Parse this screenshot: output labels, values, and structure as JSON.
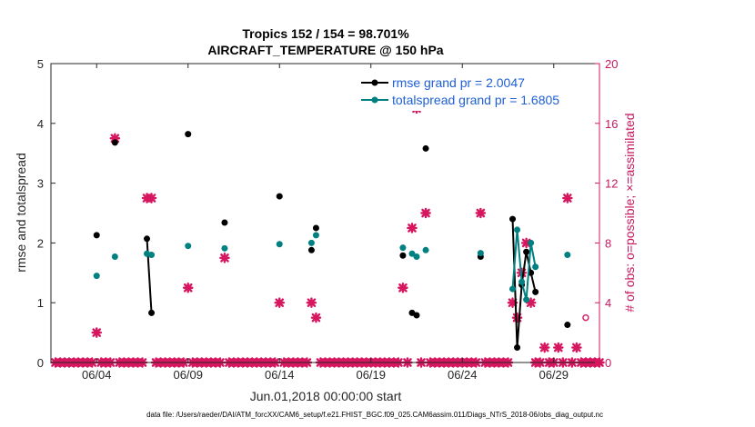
{
  "chart_data": {
    "type": "scatter",
    "title": "Tropics 152 / 154 = 98.701%",
    "subtitle": "AIRCRAFT_TEMPERATURE @ 150 hPa",
    "xlabel": "Jun.01,2018 00:00:00 start",
    "ylabel": "rmse and totalspread",
    "ylabel_right": "# of obs: o=possible; ×=assimilated",
    "xlim": [
      0.5,
      30.5
    ],
    "ylim": [
      0,
      5
    ],
    "ylim_right": [
      0,
      20
    ],
    "x_ticks": [
      3,
      8,
      13,
      18,
      23,
      28
    ],
    "x_tick_labels": [
      "06/04",
      "06/09",
      "06/14",
      "06/19",
      "06/24",
      "06/29"
    ],
    "y_ticks": [
      0,
      1,
      2,
      3,
      4,
      5
    ],
    "y_tick_labels": [
      "0",
      "1",
      "2",
      "3",
      "4",
      "5"
    ],
    "y_right_ticks": [
      0,
      4,
      8,
      12,
      16,
      20
    ],
    "y_right_tick_labels": [
      "0",
      "4",
      "8",
      "12",
      "16",
      "20"
    ],
    "grid": false,
    "legend_position": "top-right",
    "legend": [
      "rmse grand pr = 2.0047",
      "totalspread grand pr = 1.6805"
    ],
    "colors": {
      "rmse": "#000000",
      "totalspread": "#008080",
      "obs": "#d6175f",
      "axis": "#262626",
      "legend_text": "#1f5fd6"
    },
    "rmse_segments": [
      [
        [
          3.0,
          2.13
        ]
      ],
      [
        [
          4.0,
          3.68
        ]
      ],
      [
        [
          5.75,
          2.07
        ],
        [
          6.0,
          0.83
        ]
      ],
      [
        [
          8.0,
          3.82
        ]
      ],
      [
        [
          10.0,
          2.34
        ]
      ],
      [
        [
          13.0,
          2.78
        ]
      ],
      [
        [
          14.75,
          1.88
        ]
      ],
      [
        [
          15.0,
          2.25
        ]
      ],
      [
        [
          19.75,
          1.79
        ]
      ],
      [
        [
          20.25,
          0.83
        ],
        [
          20.5,
          0.79
        ]
      ],
      [
        [
          21.0,
          3.58
        ]
      ],
      [
        [
          24.0,
          1.77
        ]
      ],
      [
        [
          25.75,
          2.4
        ],
        [
          26.0,
          0.25
        ],
        [
          26.25,
          1.3
        ],
        [
          26.5,
          1.85
        ],
        [
          26.75,
          1.5
        ],
        [
          27.0,
          1.18
        ]
      ],
      [
        [
          28.75,
          0.63
        ]
      ]
    ],
    "totalspread_segments": [
      [
        [
          3.0,
          1.45
        ]
      ],
      [
        [
          4.0,
          1.77
        ]
      ],
      [
        [
          5.75,
          1.82
        ],
        [
          6.0,
          1.8
        ]
      ],
      [
        [
          8.0,
          1.95
        ]
      ],
      [
        [
          10.0,
          1.91
        ]
      ],
      [
        [
          13.0,
          1.98
        ]
      ],
      [
        [
          14.75,
          2.0
        ]
      ],
      [
        [
          15.0,
          2.13
        ]
      ],
      [
        [
          19.75,
          1.92
        ]
      ],
      [
        [
          20.25,
          1.82
        ],
        [
          20.5,
          1.77
        ]
      ],
      [
        [
          21.0,
          1.88
        ]
      ],
      [
        [
          24.0,
          1.83
        ]
      ],
      [
        [
          25.75,
          1.23
        ],
        [
          26.0,
          2.22
        ],
        [
          26.25,
          1.35
        ],
        [
          26.5,
          1.05
        ],
        [
          26.75,
          2.0
        ],
        [
          27.0,
          1.6
        ]
      ],
      [
        [
          28.75,
          1.8
        ]
      ]
    ],
    "obs_assimilated_x": [
      0.75,
      1.0,
      1.25,
      1.5,
      1.75,
      2.0,
      2.25,
      2.5,
      2.75,
      3.0,
      3.25,
      3.5,
      3.75,
      4.0,
      4.25,
      4.5,
      4.75,
      5.0,
      5.25,
      5.5,
      5.75,
      6.0,
      6.25,
      6.5,
      6.75,
      7.0,
      7.25,
      7.5,
      7.75,
      8.0,
      8.25,
      8.5,
      8.75,
      9.0,
      9.25,
      9.5,
      9.75,
      10.0,
      10.25,
      10.5,
      10.75,
      11.0,
      11.25,
      11.5,
      11.75,
      12.0,
      12.25,
      12.5,
      12.75,
      13.0,
      13.25,
      13.5,
      13.75,
      14.0,
      14.25,
      14.5,
      14.75,
      15.0,
      15.25,
      15.5,
      15.75,
      16.0,
      16.25,
      16.5,
      16.75,
      17.0,
      17.25,
      17.5,
      17.75,
      18.0,
      18.25,
      18.5,
      18.75,
      19.0,
      19.25,
      19.5,
      19.75,
      20.0,
      20.25,
      20.5,
      20.75,
      21.0,
      21.25,
      21.5,
      21.75,
      22.0,
      22.25,
      22.5,
      22.75,
      23.0,
      23.25,
      23.5,
      23.75,
      24.0,
      24.25,
      24.5,
      24.75,
      25.0,
      25.25,
      25.5,
      25.75,
      26.0,
      26.25,
      26.5,
      26.75,
      27.0,
      27.25,
      27.5,
      27.75,
      28.0,
      28.25,
      28.5,
      28.75,
      29.0,
      29.25,
      29.5,
      29.75,
      30.0,
      30.25,
      30.5
    ],
    "obs_assimilated_y": [
      0,
      0,
      0,
      0,
      0,
      0,
      0,
      0,
      0,
      2,
      0,
      0,
      0,
      15,
      0,
      0,
      0,
      0,
      0,
      0,
      11,
      11,
      0,
      0,
      0,
      0,
      0,
      0,
      0,
      5,
      0,
      0,
      0,
      0,
      0,
      0,
      0,
      7,
      0,
      0,
      0,
      0,
      0,
      0,
      0,
      0,
      0,
      0,
      0,
      4,
      0,
      0,
      0,
      0,
      0,
      0,
      4,
      3,
      0,
      0,
      0,
      0,
      0,
      0,
      0,
      0,
      0,
      0,
      0,
      0,
      0,
      0,
      0,
      0,
      0,
      0,
      5,
      0,
      9,
      17,
      0,
      10,
      0,
      0,
      0,
      0,
      0,
      0,
      0,
      0,
      0,
      0,
      0,
      10,
      0,
      0,
      0,
      0,
      0,
      0,
      4,
      3,
      6,
      8,
      4,
      0,
      0,
      1,
      0,
      0,
      1,
      0,
      11,
      0,
      1,
      0,
      0,
      0,
      0,
      0
    ],
    "obs_possible_x": [
      29.75
    ],
    "obs_possible_y": [
      3
    ],
    "footer": "data file: /Users/raeder/DAI/ATM_forcXX/CAM6_setup/f.e21.FHIST_BGC.f09_025.CAM6assim.011/Diags_NTrS_2018-06/obs_diag_output.nc"
  }
}
